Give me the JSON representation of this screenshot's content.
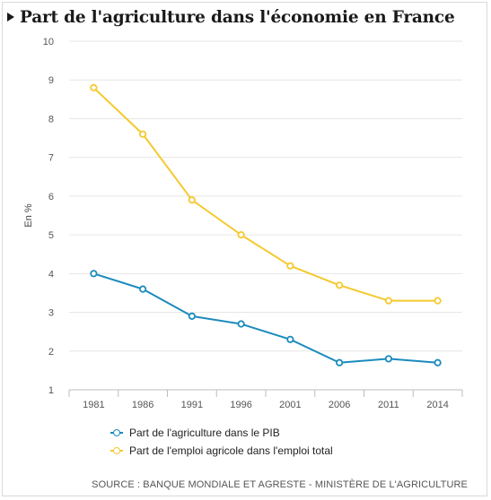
{
  "header": {
    "title": "Part de l'agriculture dans l'économie en France"
  },
  "chart_data": {
    "type": "line",
    "x": [
      "1981",
      "1986",
      "1991",
      "1996",
      "2001",
      "2006",
      "2011",
      "2014"
    ],
    "ylabel": "En %",
    "ylim": [
      1,
      10
    ],
    "yticks": [
      "1",
      "2",
      "3",
      "4",
      "5",
      "6",
      "7",
      "8",
      "9",
      "10"
    ],
    "grid": true,
    "legend_position": "bottom-left",
    "series": [
      {
        "name": "Part de l'agriculture dans le PIB",
        "color": "#1b8bbd",
        "values": [
          4.0,
          3.6,
          2.9,
          2.7,
          2.3,
          1.7,
          1.8,
          1.7
        ]
      },
      {
        "name": "Part de l'emploi agricole dans l'emploi total",
        "color": "#f5c92e",
        "values": [
          8.8,
          7.6,
          5.9,
          5.0,
          4.2,
          3.7,
          3.3,
          3.3
        ]
      }
    ]
  },
  "footer": {
    "source": "SOURCE : BANQUE MONDIALE ET AGRESTE - MINISTÈRE DE L'AGRICULTURE"
  }
}
